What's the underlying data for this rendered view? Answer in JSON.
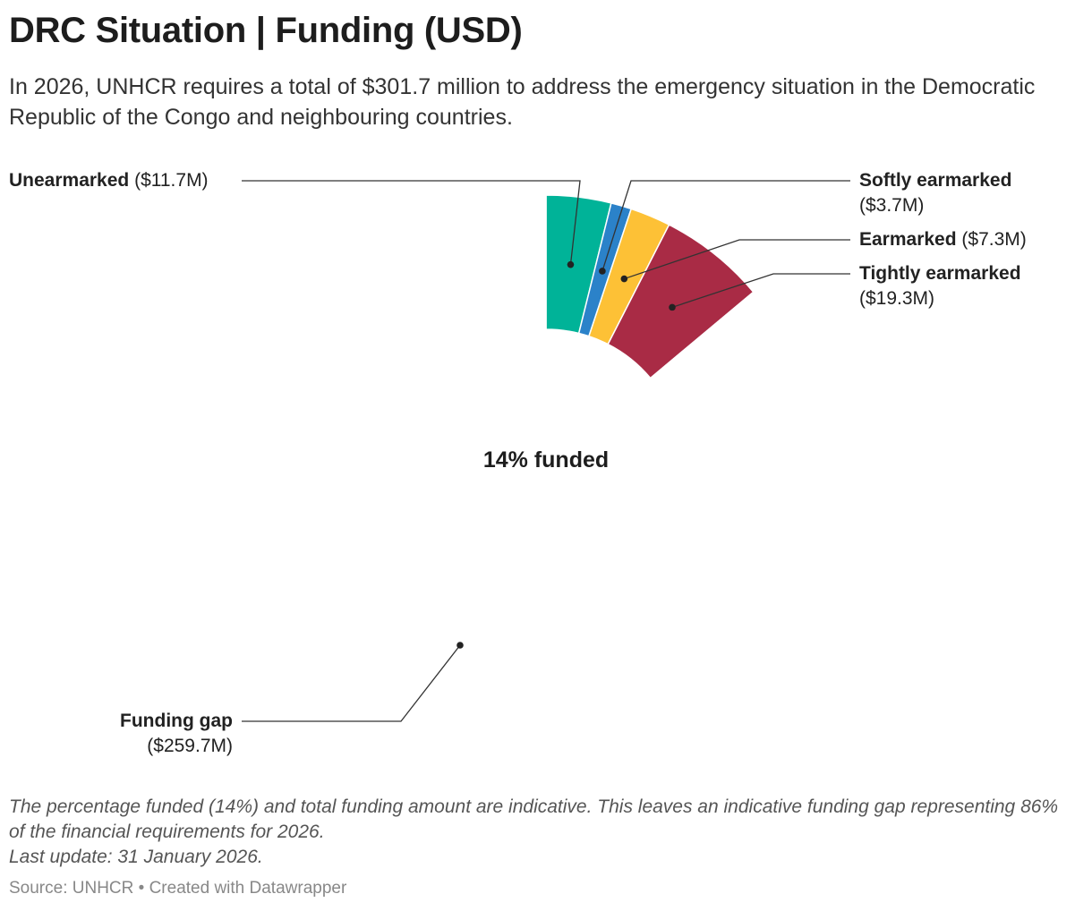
{
  "header": {
    "title": "DRC Situation | Funding (USD)",
    "subtitle": "In 2026, UNHCR requires a total of $301.7 million to address the emergency situation in the Democratic Republic of the Congo and neighbouring countries."
  },
  "chart_data": {
    "type": "pie",
    "title": "DRC Situation | Funding (USD)",
    "total_requirement_musd": 301.7,
    "center_label": "14% funded",
    "series": [
      {
        "key": "unearmarked",
        "name": "Unearmarked",
        "value_label": "($11.7M)",
        "value": 11.7,
        "color": "#00b398"
      },
      {
        "key": "softly",
        "name": "Softly earmarked",
        "value_label": "($3.7M)",
        "value": 3.7,
        "color": "#2b82c9"
      },
      {
        "key": "earmarked",
        "name": "Earmarked",
        "value_label": "($7.3M)",
        "value": 7.3,
        "color": "#fdc136"
      },
      {
        "key": "tightly",
        "name": "Tightly earmarked",
        "value_label": "($19.3M)",
        "value": 19.3,
        "color": "#a92b45"
      },
      {
        "key": "gap",
        "name": "Funding gap",
        "value_label": "($259.7M)",
        "value": 259.7,
        "color": "#ffffff"
      }
    ]
  },
  "notes": {
    "line1": "The percentage funded (14%) and total funding amount are indicative. This leaves an indicative funding gap representing 86% of the financial requirements for 2026.",
    "line2": "Last update: 31 January 2026."
  },
  "footer": {
    "source": "Source: UNHCR • Created with Datawrapper"
  }
}
